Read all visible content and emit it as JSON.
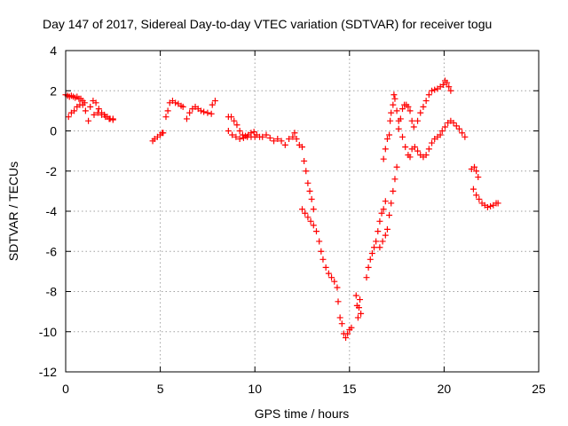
{
  "chart_data": {
    "type": "scatter",
    "title": "Day 147 of 2017, Sidereal Day-to-day VTEC variation (SDTVAR) for receiver togu",
    "xlabel": "GPS time / hours",
    "ylabel": "SDTVAR / TECUs",
    "xlim": [
      0,
      25
    ],
    "ylim": [
      -12,
      4
    ],
    "xticks": [
      "0",
      "5",
      "10",
      "15",
      "20",
      "25"
    ],
    "yticks": [
      "-12",
      "-10",
      "-8",
      "-6",
      "-4",
      "-2",
      "0",
      "2",
      "4"
    ],
    "grid": true,
    "marker": "+",
    "color": "#ff0000",
    "series": [
      {
        "name": "SDTVAR",
        "points": [
          [
            0.0,
            1.8
          ],
          [
            0.1,
            1.75
          ],
          [
            0.2,
            1.7
          ],
          [
            0.3,
            1.75
          ],
          [
            0.4,
            1.7
          ],
          [
            0.5,
            1.65
          ],
          [
            0.6,
            1.7
          ],
          [
            0.7,
            1.6
          ],
          [
            0.8,
            1.6
          ],
          [
            0.9,
            1.5
          ],
          [
            1.0,
            1.4
          ],
          [
            0.15,
            0.7
          ],
          [
            0.3,
            0.9
          ],
          [
            0.45,
            1.0
          ],
          [
            0.6,
            1.2
          ],
          [
            0.75,
            1.3
          ],
          [
            0.9,
            1.3
          ],
          [
            1.05,
            1.0
          ],
          [
            1.2,
            0.5
          ],
          [
            1.3,
            1.2
          ],
          [
            1.45,
            1.5
          ],
          [
            1.6,
            1.4
          ],
          [
            1.75,
            1.1
          ],
          [
            1.9,
            0.9
          ],
          [
            2.05,
            0.8
          ],
          [
            2.2,
            0.7
          ],
          [
            2.35,
            0.6
          ],
          [
            2.5,
            0.6
          ],
          [
            1.5,
            0.8
          ],
          [
            1.7,
            0.9
          ],
          [
            1.9,
            0.8
          ],
          [
            2.1,
            0.7
          ],
          [
            2.3,
            0.6
          ],
          [
            2.5,
            0.55
          ],
          [
            4.6,
            -0.5
          ],
          [
            4.7,
            -0.4
          ],
          [
            4.85,
            -0.3
          ],
          [
            5.0,
            -0.2
          ],
          [
            5.1,
            -0.1
          ],
          [
            5.15,
            -0.1
          ],
          [
            5.3,
            0.7
          ],
          [
            5.4,
            1.0
          ],
          [
            5.5,
            1.4
          ],
          [
            5.65,
            1.5
          ],
          [
            5.8,
            1.4
          ],
          [
            5.95,
            1.35
          ],
          [
            6.1,
            1.25
          ],
          [
            6.2,
            1.2
          ],
          [
            6.4,
            0.6
          ],
          [
            6.55,
            0.9
          ],
          [
            6.7,
            1.1
          ],
          [
            6.85,
            1.2
          ],
          [
            7.0,
            1.1
          ],
          [
            7.15,
            1.0
          ],
          [
            7.3,
            0.95
          ],
          [
            7.5,
            0.9
          ],
          [
            7.7,
            0.85
          ],
          [
            7.75,
            1.3
          ],
          [
            7.9,
            1.5
          ],
          [
            8.6,
            0.7
          ],
          [
            8.75,
            0.7
          ],
          [
            8.9,
            0.5
          ],
          [
            9.05,
            0.3
          ],
          [
            9.2,
            0.0
          ],
          [
            9.35,
            -0.2
          ],
          [
            9.5,
            -0.25
          ],
          [
            9.65,
            -0.2
          ],
          [
            9.8,
            -0.1
          ],
          [
            9.95,
            -0.05
          ],
          [
            10.1,
            -0.2
          ],
          [
            10.25,
            -0.3
          ],
          [
            8.6,
            0.0
          ],
          [
            8.8,
            -0.2
          ],
          [
            9.0,
            -0.3
          ],
          [
            9.2,
            -0.4
          ],
          [
            9.4,
            -0.35
          ],
          [
            9.6,
            -0.3
          ],
          [
            9.8,
            -0.3
          ],
          [
            10.0,
            -0.3
          ],
          [
            10.4,
            -0.3
          ],
          [
            10.6,
            -0.2
          ],
          [
            10.8,
            -0.35
          ],
          [
            11.0,
            -0.5
          ],
          [
            11.2,
            -0.4
          ],
          [
            11.4,
            -0.5
          ],
          [
            11.6,
            -0.7
          ],
          [
            11.8,
            -0.4
          ],
          [
            12.0,
            -0.3
          ],
          [
            12.1,
            -0.1
          ],
          [
            12.2,
            -0.4
          ],
          [
            12.35,
            -0.7
          ],
          [
            12.5,
            -0.8
          ],
          [
            12.6,
            -1.5
          ],
          [
            12.7,
            -2.0
          ],
          [
            12.8,
            -2.6
          ],
          [
            12.9,
            -3.0
          ],
          [
            13.0,
            -3.4
          ],
          [
            13.1,
            -3.9
          ],
          [
            12.5,
            -3.9
          ],
          [
            12.65,
            -4.1
          ],
          [
            12.8,
            -4.3
          ],
          [
            12.95,
            -4.5
          ],
          [
            13.1,
            -4.7
          ],
          [
            13.25,
            -5.0
          ],
          [
            13.4,
            -5.5
          ],
          [
            13.5,
            -6.0
          ],
          [
            13.6,
            -6.4
          ],
          [
            13.75,
            -6.8
          ],
          [
            13.9,
            -7.1
          ],
          [
            14.05,
            -7.3
          ],
          [
            14.2,
            -7.5
          ],
          [
            14.35,
            -7.8
          ],
          [
            14.4,
            -8.5
          ],
          [
            14.5,
            -9.3
          ],
          [
            14.6,
            -9.6
          ],
          [
            14.7,
            -10.1
          ],
          [
            14.8,
            -10.3
          ],
          [
            14.9,
            -10.1
          ],
          [
            15.0,
            -9.9
          ],
          [
            15.1,
            -9.8
          ],
          [
            15.35,
            -8.2
          ],
          [
            15.4,
            -8.7
          ],
          [
            15.45,
            -9.3
          ],
          [
            15.5,
            -8.8
          ],
          [
            15.55,
            -8.4
          ],
          [
            15.6,
            -9.1
          ],
          [
            15.9,
            -7.3
          ],
          [
            16.0,
            -6.8
          ],
          [
            16.1,
            -6.4
          ],
          [
            16.2,
            -6.1
          ],
          [
            16.3,
            -5.8
          ],
          [
            16.4,
            -5.5
          ],
          [
            16.5,
            -5.0
          ],
          [
            16.6,
            -4.5
          ],
          [
            16.7,
            -4.1
          ],
          [
            16.8,
            -3.9
          ],
          [
            16.9,
            -3.5
          ],
          [
            16.6,
            -5.8
          ],
          [
            16.75,
            -5.5
          ],
          [
            16.9,
            -5.2
          ],
          [
            17.0,
            -4.9
          ],
          [
            17.1,
            -4.2
          ],
          [
            17.2,
            -3.6
          ],
          [
            17.3,
            -3.0
          ],
          [
            17.4,
            -2.4
          ],
          [
            17.5,
            -1.8
          ],
          [
            16.8,
            -1.4
          ],
          [
            16.9,
            -0.9
          ],
          [
            17.0,
            -0.4
          ],
          [
            17.1,
            -0.2
          ],
          [
            17.15,
            0.5
          ],
          [
            17.2,
            0.9
          ],
          [
            17.3,
            1.3
          ],
          [
            17.35,
            1.8
          ],
          [
            17.4,
            1.6
          ],
          [
            17.5,
            1.0
          ],
          [
            17.6,
            0.5
          ],
          [
            17.6,
            0.1
          ],
          [
            17.7,
            0.6
          ],
          [
            17.8,
            1.1
          ],
          [
            17.9,
            1.3
          ],
          [
            18.0,
            1.3
          ],
          [
            18.1,
            1.2
          ],
          [
            18.2,
            1.0
          ],
          [
            18.3,
            0.5
          ],
          [
            18.4,
            0.2
          ],
          [
            17.8,
            -0.3
          ],
          [
            17.95,
            -0.8
          ],
          [
            18.1,
            -1.2
          ],
          [
            18.2,
            -1.3
          ],
          [
            18.3,
            -0.9
          ],
          [
            18.45,
            -0.8
          ],
          [
            18.6,
            -1.0
          ],
          [
            18.75,
            -1.2
          ],
          [
            18.9,
            -1.3
          ],
          [
            19.05,
            -1.2
          ],
          [
            19.2,
            -0.9
          ],
          [
            19.35,
            -0.6
          ],
          [
            19.5,
            -0.4
          ],
          [
            19.65,
            -0.3
          ],
          [
            19.8,
            -0.2
          ],
          [
            19.9,
            0.0
          ],
          [
            20.05,
            0.2
          ],
          [
            20.2,
            0.4
          ],
          [
            20.35,
            0.5
          ],
          [
            20.5,
            0.4
          ],
          [
            20.65,
            0.25
          ],
          [
            20.8,
            0.1
          ],
          [
            20.95,
            -0.1
          ],
          [
            21.1,
            -0.3
          ],
          [
            18.6,
            0.5
          ],
          [
            18.75,
            0.9
          ],
          [
            18.9,
            1.2
          ],
          [
            19.05,
            1.5
          ],
          [
            19.2,
            1.8
          ],
          [
            19.35,
            2.0
          ],
          [
            19.5,
            2.05
          ],
          [
            19.65,
            2.1
          ],
          [
            19.8,
            2.2
          ],
          [
            19.95,
            2.3
          ],
          [
            20.05,
            2.5
          ],
          [
            20.15,
            2.4
          ],
          [
            20.25,
            2.2
          ],
          [
            20.35,
            2.0
          ],
          [
            21.45,
            -1.9
          ],
          [
            21.6,
            -1.8
          ],
          [
            21.7,
            -2.0
          ],
          [
            21.8,
            -2.3
          ],
          [
            21.55,
            -2.9
          ],
          [
            21.7,
            -3.2
          ],
          [
            21.85,
            -3.4
          ],
          [
            22.0,
            -3.6
          ],
          [
            22.15,
            -3.7
          ],
          [
            22.3,
            -3.8
          ],
          [
            22.45,
            -3.75
          ],
          [
            22.6,
            -3.7
          ],
          [
            22.75,
            -3.6
          ],
          [
            22.85,
            -3.6
          ]
        ]
      }
    ]
  }
}
